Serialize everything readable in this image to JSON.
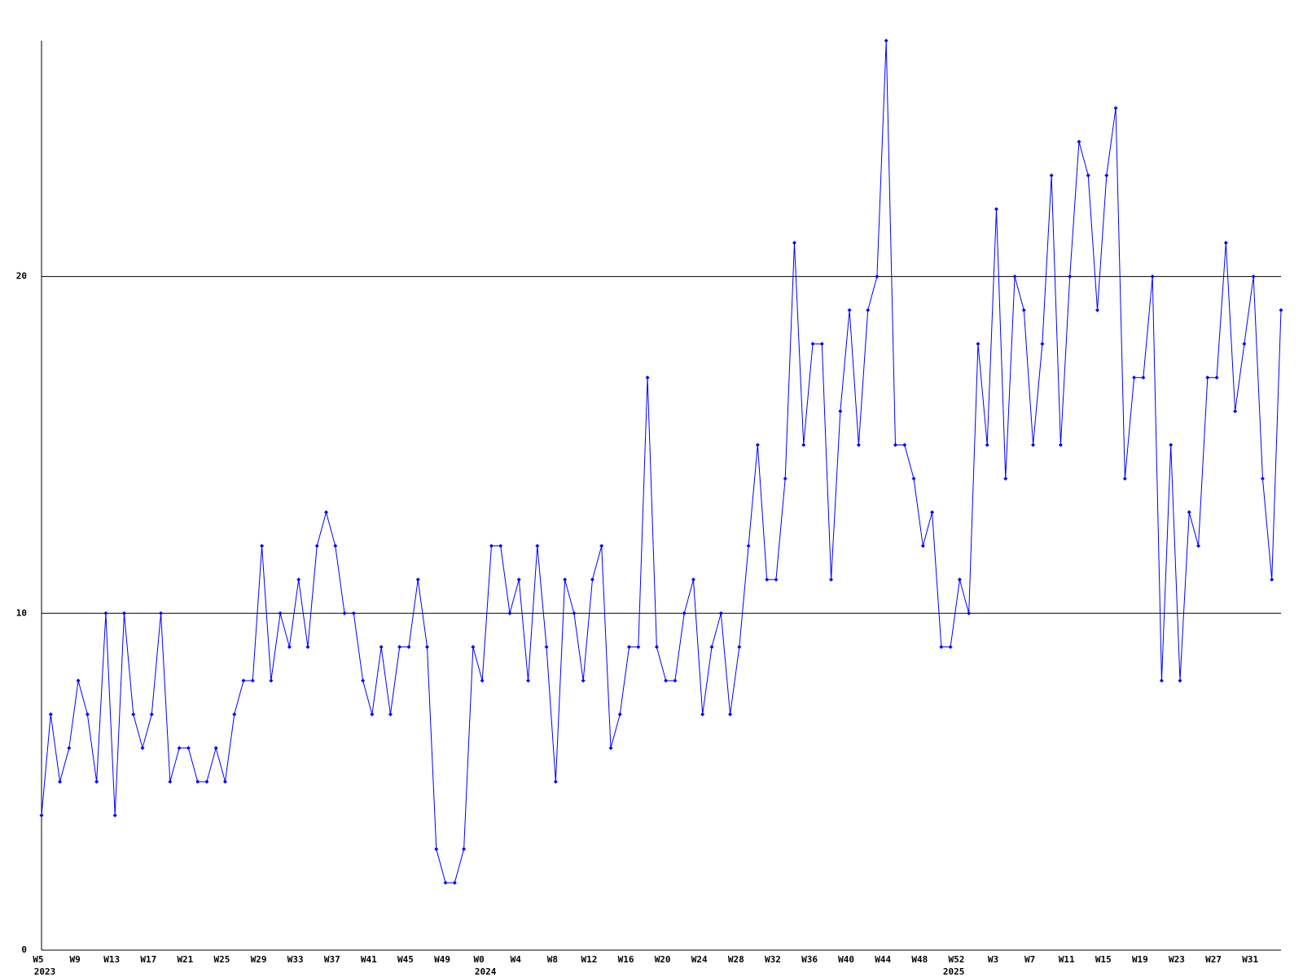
{
  "chart_data": {
    "type": "line",
    "categories": [
      "W5",
      null,
      null,
      null,
      "W9",
      null,
      null,
      null,
      "W13",
      null,
      null,
      null,
      "W17",
      null,
      null,
      null,
      "W21",
      null,
      null,
      null,
      "W25",
      null,
      null,
      null,
      "W29",
      null,
      null,
      null,
      "W33",
      null,
      null,
      null,
      "W37",
      null,
      null,
      null,
      "W41",
      null,
      null,
      null,
      "W45",
      null,
      null,
      null,
      "W49",
      null,
      null,
      null,
      "W0",
      null,
      null,
      null,
      "W4",
      null,
      null,
      null,
      "W8",
      null,
      null,
      null,
      "W12",
      null,
      null,
      null,
      "W16",
      null,
      null,
      null,
      "W20",
      null,
      null,
      null,
      "W24",
      null,
      null,
      null,
      "W28",
      null,
      null,
      null,
      "W32",
      null,
      null,
      null,
      "W36",
      null,
      null,
      null,
      "W40",
      null,
      null,
      null,
      "W44",
      null,
      null,
      null,
      "W48",
      null,
      null,
      null,
      "W52",
      null,
      null,
      null,
      "W3",
      null,
      null,
      null,
      "W7",
      null,
      null,
      null,
      "W11",
      null,
      null,
      null,
      "W15",
      null,
      null,
      null,
      "W19",
      null,
      null,
      null,
      "W23",
      null,
      null,
      null,
      "W27",
      null,
      null,
      null,
      "W31",
      null,
      null,
      null
    ],
    "category_years": [
      "2023",
      null,
      null,
      null,
      null,
      null,
      null,
      null,
      null,
      null,
      null,
      null,
      null,
      null,
      null,
      null,
      null,
      null,
      null,
      null,
      null,
      null,
      null,
      null,
      null,
      null,
      null,
      null,
      null,
      null,
      null,
      null,
      null,
      null,
      null,
      null,
      null,
      null,
      null,
      null,
      null,
      null,
      null,
      null,
      null,
      null,
      null,
      null,
      "2024",
      null,
      null,
      null,
      null,
      null,
      null,
      null,
      null,
      null,
      null,
      null,
      null,
      null,
      null,
      null,
      null,
      null,
      null,
      null,
      null,
      null,
      null,
      null,
      null,
      null,
      null,
      null,
      null,
      null,
      null,
      null,
      null,
      null,
      null,
      null,
      null,
      null,
      null,
      null,
      null,
      null,
      null,
      null,
      null,
      null,
      null,
      null,
      null,
      null,
      null,
      "2025",
      null,
      null,
      null,
      null,
      null,
      null,
      null,
      null,
      null,
      null,
      null,
      null,
      null,
      null,
      null,
      null,
      null,
      null,
      null,
      null,
      null,
      null,
      null,
      null,
      null,
      null,
      null,
      null,
      null,
      null,
      null,
      null,
      null
    ],
    "series": [
      {
        "color": "#0000ff",
        "values": [
          4,
          7,
          5,
          6,
          8,
          7,
          5,
          10,
          4,
          10,
          7,
          6,
          7,
          10,
          5,
          6,
          6,
          5,
          5,
          6,
          5,
          7,
          8,
          8,
          12,
          8,
          10,
          9,
          11,
          9,
          12,
          13,
          12,
          10,
          10,
          8,
          7,
          9,
          7,
          9,
          9,
          11,
          9,
          3,
          2,
          2,
          3,
          9,
          8,
          12,
          12,
          10,
          11,
          8,
          12,
          9,
          5,
          11,
          10,
          8,
          11,
          12,
          6,
          7,
          9,
          9,
          17,
          9,
          8,
          8,
          10,
          11,
          7,
          9,
          10,
          7,
          9,
          12,
          15,
          11,
          11,
          14,
          21,
          15,
          18,
          18,
          11,
          16,
          19,
          15,
          19,
          20,
          27,
          15,
          15,
          14,
          12,
          13,
          9,
          9,
          11,
          10,
          18,
          15,
          22,
          14,
          20,
          19,
          15,
          18,
          23,
          15,
          20,
          24,
          23,
          19,
          23,
          25,
          14,
          17,
          17,
          20,
          8,
          15,
          8,
          13,
          12,
          17,
          17,
          21,
          16,
          18,
          20,
          14,
          11,
          19
        ]
      }
    ],
    "ylim": [
      0,
      27
    ],
    "yticks": [
      0,
      10,
      20
    ],
    "grid": true
  }
}
